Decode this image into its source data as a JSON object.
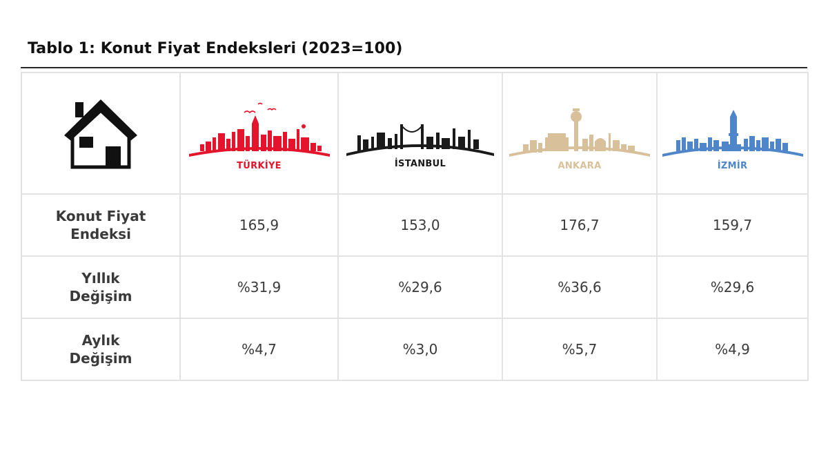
{
  "title": "Tablo 1: Konut Fiyat Endeksleri (2023=100)",
  "icons": {
    "corner": "house-icon",
    "turkiye": "turkiye-skyline-icon",
    "istanbul": "istanbul-skyline-icon",
    "ankara": "ankara-skyline-icon",
    "izmir": "izmir-skyline-icon"
  },
  "columns": [
    {
      "name": "TÜRKİYE",
      "color": "#e3142b"
    },
    {
      "name": "İSTANBUL",
      "color": "#1a1a1a"
    },
    {
      "name": "ANKARA",
      "color": "#d8c09a"
    },
    {
      "name": "İZMİR",
      "color": "#4f86c9"
    }
  ],
  "rows": [
    {
      "label_line1": "Konut Fiyat",
      "label_line2": "Endeksi",
      "values": [
        "165,9",
        "153,0",
        "176,7",
        "159,7"
      ]
    },
    {
      "label_line1": "Yıllık",
      "label_line2": "Değişim",
      "values": [
        "%31,9",
        "%29,6",
        "%36,6",
        "%29,6"
      ]
    },
    {
      "label_line1": "Aylık",
      "label_line2": "Değişim",
      "values": [
        "%4,7",
        "%3,0",
        "%5,7",
        "%4,9"
      ]
    }
  ]
}
